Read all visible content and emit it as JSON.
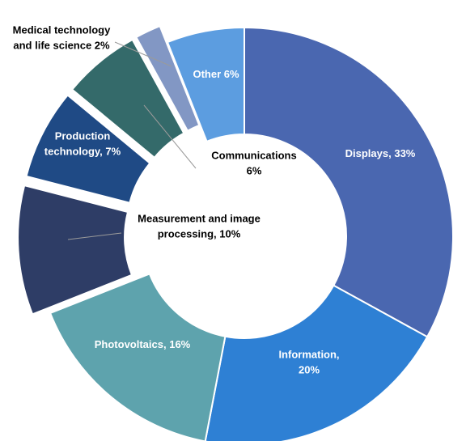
{
  "chart_data": {
    "type": "pie",
    "donut": true,
    "title": "",
    "slices": [
      {
        "label": "Displays",
        "value": 33,
        "text": [
          "Displays, 33%"
        ],
        "color": "#4a67b0",
        "exploded": false
      },
      {
        "label": "Information",
        "value": 20,
        "text": [
          "Information,",
          "20%"
        ],
        "color": "#2e80d4",
        "exploded": false
      },
      {
        "label": "Photovoltaics",
        "value": 16,
        "text": [
          "Photovoltaics, 16%"
        ],
        "color": "#5ea3ad",
        "exploded": false
      },
      {
        "label": "Measurement and image processing",
        "value": 10,
        "text": [
          "Measurement and image",
          "processing, 10%"
        ],
        "color": "#2e3d66",
        "exploded": true
      },
      {
        "label": "Production technology",
        "value": 7,
        "text": [
          "Production",
          "technology, 7%"
        ],
        "color": "#1f4a85",
        "exploded": true
      },
      {
        "label": "Communications",
        "value": 6,
        "text": [
          "Communications",
          "6%"
        ],
        "color": "#346a6a",
        "exploded": true
      },
      {
        "label": "Medical technology and life science",
        "value": 2,
        "text": [
          "Medical technology",
          "and life science 2%"
        ],
        "color": "#8297c4",
        "exploded": true
      },
      {
        "label": "Other",
        "value": 6,
        "text": [
          "Other 6%"
        ],
        "color": "#5c9de0",
        "exploded": false
      }
    ]
  }
}
